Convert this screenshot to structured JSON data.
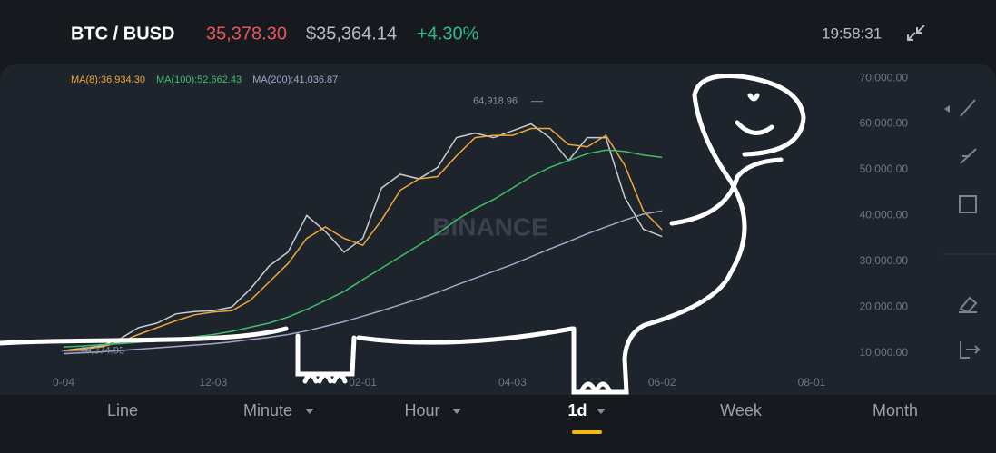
{
  "header": {
    "pair": "BTC / BUSD",
    "last_price": "35,378.30",
    "usd_price": "$35,364.14",
    "change": "+4.30%",
    "time": "19:58:31"
  },
  "tabs": [
    "Line",
    "Minute",
    "Hour",
    "1d",
    "Week",
    "Month"
  ],
  "chart_data": {
    "type": "line",
    "watermark": "BINANCE",
    "categories": [
      "0-04",
      null,
      null,
      null,
      null,
      null,
      null,
      null,
      "12-03",
      null,
      null,
      null,
      null,
      null,
      null,
      null,
      "02-01",
      null,
      null,
      null,
      null,
      null,
      null,
      null,
      "04-03",
      null,
      null,
      null,
      null,
      null,
      null,
      null,
      "06-02",
      null,
      null,
      null,
      null,
      null,
      null,
      null,
      "08-01",
      null
    ],
    "values": [
      10500,
      11000,
      11500,
      13000,
      15500,
      16500,
      18500,
      19000,
      19200,
      20000,
      24000,
      29000,
      32000,
      40000,
      36500,
      32000,
      35000,
      46000,
      49000,
      48000,
      50500,
      57000,
      58000,
      57000,
      58500,
      60000,
      57000,
      52000,
      57000,
      57000,
      44000,
      37000,
      35400,
      null,
      null,
      null,
      null,
      null,
      null,
      null,
      null,
      null
    ],
    "color": "#c9cdd3",
    "series": [
      {
        "name": "MA(8):36,934.30",
        "color": "#f0a83a",
        "values": [
          10400,
          10800,
          11300,
          12300,
          14000,
          15500,
          17000,
          18300,
          18900,
          19200,
          21500,
          25500,
          29500,
          35000,
          37500,
          35000,
          33500,
          39000,
          45500,
          48000,
          48500,
          53000,
          57000,
          57500,
          57500,
          59000,
          59000,
          55500,
          55000,
          57500,
          51000,
          41000,
          36900,
          null,
          null,
          null,
          null,
          null,
          null,
          null,
          null,
          null
        ]
      },
      {
        "name": "MA(100):52,662.43",
        "color": "#3fbf6a",
        "values": [
          11300,
          11500,
          11800,
          12000,
          12300,
          12700,
          13100,
          13500,
          14000,
          14700,
          15600,
          16500,
          17800,
          19500,
          21400,
          23400,
          26000,
          28500,
          31000,
          33500,
          36000,
          39000,
          41500,
          43500,
          46000,
          48500,
          50500,
          52000,
          53500,
          54300,
          54000,
          53200,
          52700,
          null,
          null,
          null,
          null,
          null,
          null,
          null,
          null,
          null
        ]
      },
      {
        "name": "MA(200):41,036.87",
        "color": "#a9a3c9",
        "values": [
          9800,
          10000,
          10200,
          10500,
          10800,
          11100,
          11400,
          11700,
          12000,
          12400,
          12900,
          13400,
          14000,
          14800,
          15800,
          16800,
          18000,
          19200,
          20500,
          21800,
          23200,
          24800,
          26300,
          27800,
          29300,
          31000,
          32700,
          34300,
          36000,
          37500,
          39000,
          40300,
          41000,
          null,
          null,
          null,
          null,
          null,
          null,
          null,
          null,
          null
        ]
      }
    ],
    "annotations": [
      {
        "value": 64918.96,
        "label": "64,918.96"
      },
      {
        "value": 10374.93,
        "label": "10,374.93"
      }
    ],
    "ylim": [
      2000,
      72000
    ],
    "yticks": [
      {
        "value": 10000,
        "label": "10,000.00"
      },
      {
        "value": 20000,
        "label": "20,000.00"
      },
      {
        "value": 30000,
        "label": "30,000.00"
      },
      {
        "value": 40000,
        "label": "40,000.00"
      },
      {
        "value": 50000,
        "label": "50,000.00"
      },
      {
        "value": 60000,
        "label": "60,000.00"
      },
      {
        "value": 70000,
        "label": "70,000.00"
      }
    ],
    "grid": false
  }
}
